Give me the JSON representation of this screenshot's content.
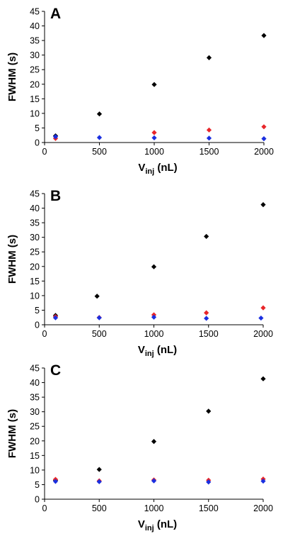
{
  "chart_data": [
    {
      "type": "scatter",
      "panel_label": "A",
      "ylabel": "FWHM (s)",
      "xlabel_main": "V",
      "xlabel_sub": "inj",
      "xlabel_unit": " (nL)",
      "xlim": [
        0,
        2000
      ],
      "ylim": [
        0,
        45
      ],
      "xticks": [
        0,
        500,
        1000,
        1500,
        2000
      ],
      "yticks": [
        0,
        5,
        10,
        15,
        20,
        25,
        30,
        35,
        40,
        45
      ],
      "grid": false,
      "legend": "none",
      "series": [
        {
          "color": "#000000",
          "x": [
            100,
            500,
            1000,
            1500,
            2000
          ],
          "y": [
            2.3,
            9.8,
            19.9,
            29.1,
            36.7
          ]
        },
        {
          "color": "#e8262a",
          "x": [
            100,
            1000,
            1500,
            2000
          ],
          "y": [
            1.4,
            3.4,
            4.3,
            5.4
          ]
        },
        {
          "color": "#1a2fe0",
          "x": [
            100,
            500,
            1000,
            1500,
            2000
          ],
          "y": [
            2.0,
            1.7,
            1.6,
            1.5,
            1.3
          ]
        }
      ]
    },
    {
      "type": "scatter",
      "panel_label": "B",
      "ylabel": "FWHM (s)",
      "xlabel_main": "V",
      "xlabel_sub": "inj",
      "xlabel_unit": " (nL)",
      "xlim": [
        0,
        2000
      ],
      "ylim": [
        0,
        45
      ],
      "xticks": [
        0,
        500,
        1000,
        1500,
        2000
      ],
      "yticks": [
        0,
        5,
        10,
        15,
        20,
        25,
        30,
        35,
        40,
        45
      ],
      "grid": false,
      "legend": "none",
      "series": [
        {
          "color": "#000000",
          "x": [
            100,
            480,
            1000,
            1480,
            2000
          ],
          "y": [
            3.2,
            9.8,
            19.9,
            30.3,
            41.2
          ]
        },
        {
          "color": "#e8262a",
          "x": [
            100,
            500,
            1000,
            1480,
            2000
          ],
          "y": [
            2.8,
            2.5,
            3.4,
            4.1,
            5.8
          ]
        },
        {
          "color": "#1a2fe0",
          "x": [
            100,
            500,
            1000,
            1480,
            1980
          ],
          "y": [
            2.4,
            2.4,
            2.6,
            2.2,
            2.3
          ]
        }
      ]
    },
    {
      "type": "scatter",
      "panel_label": "C",
      "ylabel": "FWHM (s)",
      "xlabel_main": "V",
      "xlabel_sub": "inj",
      "xlabel_unit": " (nL)",
      "xlim": [
        0,
        2000
      ],
      "ylim": [
        0,
        45
      ],
      "xticks": [
        0,
        500,
        1000,
        1500,
        2000
      ],
      "yticks": [
        0,
        5,
        10,
        15,
        20,
        25,
        30,
        35,
        40,
        45
      ],
      "grid": false,
      "legend": "none",
      "series": [
        {
          "color": "#000000",
          "x": [
            100,
            500,
            1000,
            1500,
            2000
          ],
          "y": [
            6.5,
            10.2,
            19.8,
            30.2,
            41.3
          ]
        },
        {
          "color": "#e8262a",
          "x": [
            100,
            500,
            1000,
            1500,
            2000
          ],
          "y": [
            6.8,
            6.3,
            6.6,
            6.5,
            6.9
          ]
        },
        {
          "color": "#1a2fe0",
          "x": [
            100,
            500,
            1000,
            1500,
            2000
          ],
          "y": [
            6.1,
            6.0,
            6.3,
            5.9,
            6.2
          ]
        }
      ]
    }
  ]
}
